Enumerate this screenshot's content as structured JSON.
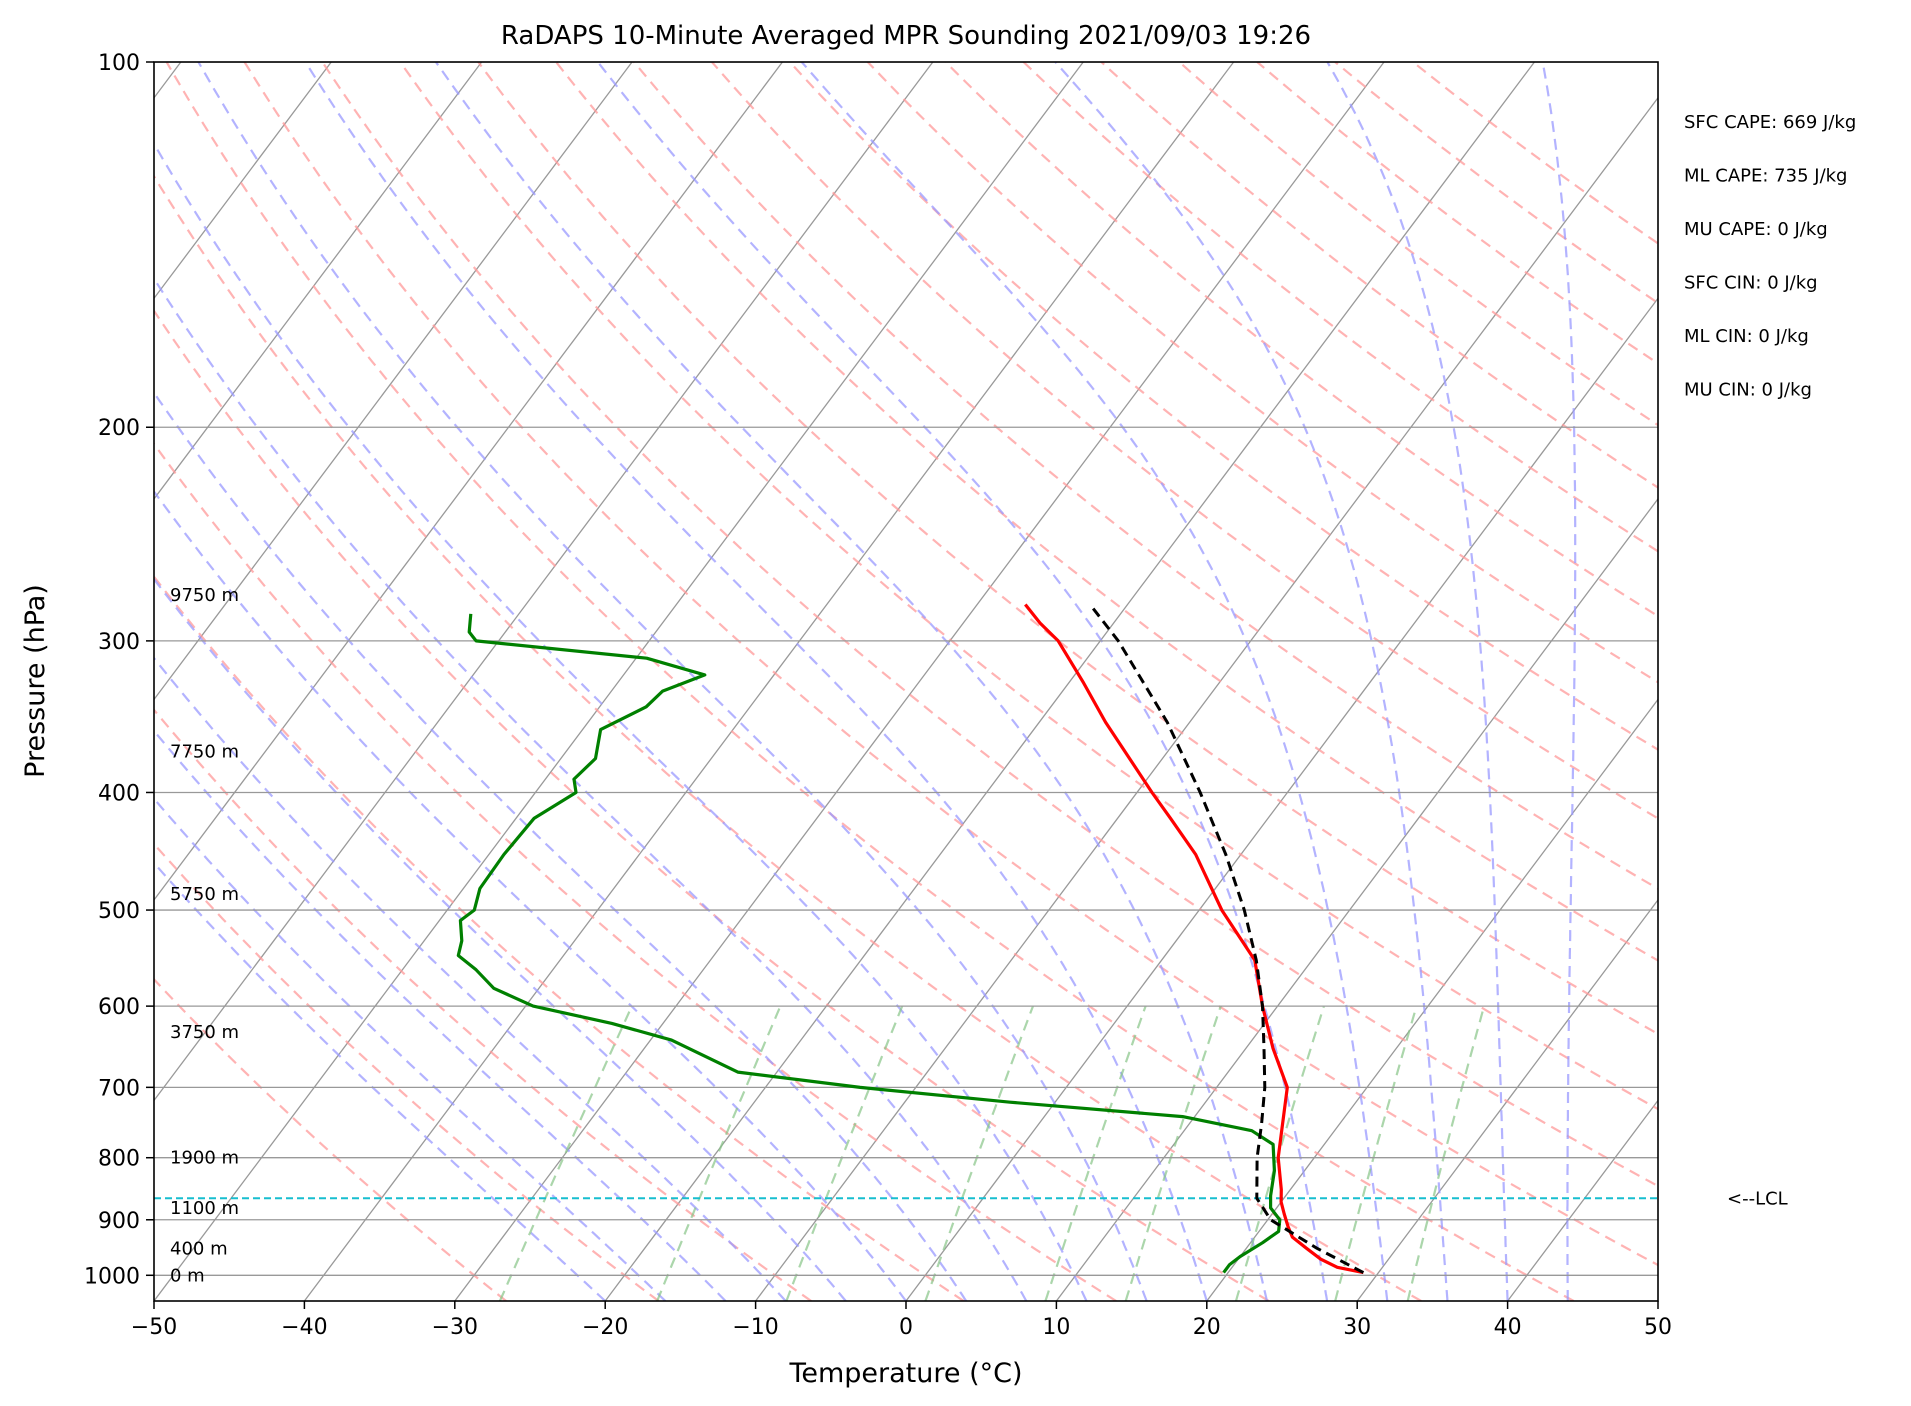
{
  "chart_data": {
    "type": "skew-t",
    "title": "RaDAPS 10-Minute Averaged MPR Sounding 2021/09/03 19:26",
    "xlabel": "Temperature (°C)",
    "ylabel": "Pressure (hPa)",
    "xlim": [
      -50,
      50
    ],
    "ylim": [
      1050,
      100
    ],
    "y_scale": "log",
    "x_ticks": [
      -50,
      -40,
      -30,
      -20,
      -10,
      0,
      10,
      20,
      30,
      40,
      50
    ],
    "x_tick_labels": [
      "−50",
      "−40",
      "−30",
      "−20",
      "−10",
      "0",
      "10",
      "20",
      "30",
      "40",
      "50"
    ],
    "y_ticks": [
      100,
      200,
      300,
      400,
      500,
      600,
      700,
      800,
      900,
      1000
    ],
    "y_tick_labels": [
      "100",
      "200",
      "300",
      "400",
      "500",
      "600",
      "700",
      "800",
      "900",
      "1000"
    ],
    "grid": true,
    "colors": {
      "temperature": "#ff0000",
      "dewpoint": "#008000",
      "parcel": "#000000",
      "lcl": "#17becf",
      "dry_adiabats": "#ff9999",
      "moist_adiabats": "#9999ff",
      "mixing_ratio": "#88c488",
      "isotherms": "#999999"
    },
    "series": [
      {
        "key": "temperature",
        "points": [
          {
            "p": 995,
            "t": 29.0
          },
          {
            "p": 985,
            "t": 27.0
          },
          {
            "p": 970,
            "t": 25.5
          },
          {
            "p": 950,
            "t": 24.0
          },
          {
            "p": 930,
            "t": 22.5
          },
          {
            "p": 912,
            "t": 21.7
          },
          {
            "p": 890,
            "t": 20.8
          },
          {
            "p": 870,
            "t": 20.0
          },
          {
            "p": 850,
            "t": 19.4
          },
          {
            "p": 800,
            "t": 17.6
          },
          {
            "p": 750,
            "t": 16.2
          },
          {
            "p": 700,
            "t": 14.7
          },
          {
            "p": 650,
            "t": 11.8
          },
          {
            "p": 600,
            "t": 9.0
          },
          {
            "p": 550,
            "t": 6.2
          },
          {
            "p": 500,
            "t": 1.5
          },
          {
            "p": 450,
            "t": -3.0
          },
          {
            "p": 420,
            "t": -6.5
          },
          {
            "p": 400,
            "t": -9.0
          },
          {
            "p": 350,
            "t": -15.6
          },
          {
            "p": 325,
            "t": -19.0
          },
          {
            "p": 300,
            "t": -22.8
          },
          {
            "p": 290,
            "t": -24.9
          },
          {
            "p": 280,
            "t": -26.8
          }
        ]
      },
      {
        "key": "dewpoint",
        "points": [
          {
            "p": 995,
            "t": 19.7
          },
          {
            "p": 980,
            "t": 19.7
          },
          {
            "p": 965,
            "t": 20.0
          },
          {
            "p": 940,
            "t": 20.8
          },
          {
            "p": 920,
            "t": 21.3
          },
          {
            "p": 900,
            "t": 20.8
          },
          {
            "p": 880,
            "t": 19.6
          },
          {
            "p": 860,
            "t": 19.0
          },
          {
            "p": 820,
            "t": 18.0
          },
          {
            "p": 780,
            "t": 16.6
          },
          {
            "p": 760,
            "t": 14.5
          },
          {
            "p": 740,
            "t": 9.2
          },
          {
            "p": 720,
            "t": -3.0
          },
          {
            "p": 700,
            "t": -13.7
          },
          {
            "p": 680,
            "t": -22.6
          },
          {
            "p": 640,
            "t": -28.6
          },
          {
            "p": 620,
            "t": -33.4
          },
          {
            "p": 600,
            "t": -39.5
          },
          {
            "p": 580,
            "t": -43.0
          },
          {
            "p": 560,
            "t": -45.1
          },
          {
            "p": 545,
            "t": -47.0
          },
          {
            "p": 530,
            "t": -47.5
          },
          {
            "p": 510,
            "t": -48.6
          },
          {
            "p": 500,
            "t": -48.2
          },
          {
            "p": 480,
            "t": -48.9
          },
          {
            "p": 450,
            "t": -49.0
          },
          {
            "p": 420,
            "t": -48.8
          },
          {
            "p": 400,
            "t": -47.3
          },
          {
            "p": 390,
            "t": -48.1
          },
          {
            "p": 375,
            "t": -47.7
          },
          {
            "p": 355,
            "t": -48.8
          },
          {
            "p": 340,
            "t": -46.9
          },
          {
            "p": 330,
            "t": -46.6
          },
          {
            "p": 320,
            "t": -44.6
          },
          {
            "p": 310,
            "t": -49.3
          },
          {
            "p": 300,
            "t": -61.5
          },
          {
            "p": 295,
            "t": -62.4
          },
          {
            "p": 285,
            "t": -63.2
          }
        ]
      },
      {
        "key": "parcel",
        "points": [
          {
            "p": 995,
            "t": 29.0
          },
          {
            "p": 950,
            "t": 24.7
          },
          {
            "p": 900,
            "t": 20.2
          },
          {
            "p": 864,
            "t": 18.2
          },
          {
            "p": 800,
            "t": 16.2
          },
          {
            "p": 750,
            "t": 14.8
          },
          {
            "p": 700,
            "t": 13.2
          },
          {
            "p": 650,
            "t": 11.2
          },
          {
            "p": 600,
            "t": 9.0
          },
          {
            "p": 550,
            "t": 6.3
          },
          {
            "p": 500,
            "t": 3.0
          },
          {
            "p": 450,
            "t": -1.0
          },
          {
            "p": 400,
            "t": -5.8
          },
          {
            "p": 350,
            "t": -11.5
          },
          {
            "p": 300,
            "t": -18.8
          },
          {
            "p": 280,
            "t": -22.5
          }
        ]
      }
    ],
    "lcl": {
      "pressure": 864,
      "label": "<--LCL"
    },
    "height_labels": [
      {
        "p": 1000,
        "text": "0 m"
      },
      {
        "p": 950,
        "text": "400 m"
      },
      {
        "p": 880,
        "text": "1100 m"
      },
      {
        "p": 800,
        "text": "1900 m"
      },
      {
        "p": 630,
        "text": "3750 m"
      },
      {
        "p": 485,
        "text": "5750 m"
      },
      {
        "p": 370,
        "text": "7750 m"
      },
      {
        "p": 275,
        "text": "9750 m"
      }
    ],
    "indices": [
      "SFC CAPE: 669 J/kg",
      "ML CAPE: 735 J/kg",
      "MU CAPE: 0 J/kg",
      "SFC CIN: 0 J/kg",
      "ML CIN: 0 J/kg",
      "MU CIN: 0 J/kg"
    ]
  }
}
